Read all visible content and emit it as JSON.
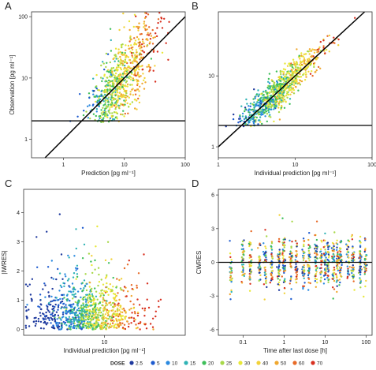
{
  "chart_data": [
    {
      "panel": "A",
      "type": "scatter",
      "xlabel": "Prediction [pg ml⁻¹]",
      "ylabel": "Observation [pg ml⁻¹]",
      "x_scale": "log",
      "y_scale": "log",
      "xlim": [
        0.3,
        100
      ],
      "ylim": [
        0.5,
        120
      ],
      "x_ticks": [
        1,
        10,
        100
      ],
      "x_tick_labels": [
        "1",
        "10",
        "100"
      ],
      "y_ticks": [
        1,
        10,
        100
      ],
      "y_tick_labels": [
        "1",
        "10",
        "100"
      ],
      "reference_lines": [
        {
          "type": "identity"
        },
        {
          "type": "horizontal",
          "y": 2
        }
      ],
      "point_cloud": {
        "cx": 8,
        "cy": 7,
        "sx": 0.3,
        "sy": 0.3,
        "n": 900,
        "corr": 0.85
      }
    },
    {
      "panel": "B",
      "type": "scatter",
      "xlabel": "Individual prediction [pg ml⁻¹]",
      "ylabel": "",
      "x_scale": "log",
      "y_scale": "log",
      "xlim": [
        1,
        100
      ],
      "ylim": [
        0.7,
        80
      ],
      "x_ticks": [
        1,
        10,
        100
      ],
      "x_tick_labels": [
        "1",
        "10",
        "100"
      ],
      "y_ticks": [
        1,
        10
      ],
      "y_tick_labels": [
        "1",
        "10"
      ],
      "reference_lines": [
        {
          "type": "identity"
        },
        {
          "type": "horizontal",
          "y": 2
        }
      ],
      "point_cloud": {
        "cx": 6,
        "cy": 6,
        "sx": 0.28,
        "sy": 0.28,
        "n": 900,
        "corr": 0.98
      }
    },
    {
      "panel": "C",
      "type": "scatter",
      "xlabel": "Individual prediction [pg ml⁻¹]",
      "ylabel": "|IWRES|",
      "x_scale": "log",
      "y_scale": "linear",
      "xlim": [
        1,
        100
      ],
      "ylim": [
        -0.2,
        4.8
      ],
      "x_ticks": [
        10
      ],
      "x_tick_labels": [
        "10"
      ],
      "y_ticks": [
        0,
        1,
        2,
        3,
        4
      ],
      "y_tick_labels": [
        "0",
        "1",
        "2",
        "3",
        "4"
      ],
      "point_cloud": {
        "cx": 6,
        "n": 1000
      }
    },
    {
      "panel": "D",
      "type": "scatter",
      "xlabel": "Time after last dose [h]",
      "ylabel": "CWRES",
      "x_scale": "log",
      "y_scale": "linear",
      "xlim": [
        0.025,
        140
      ],
      "ylim": [
        -6.5,
        6.5
      ],
      "x_ticks": [
        0.1,
        1,
        10,
        100
      ],
      "x_tick_labels": [
        "0.1",
        "1",
        "10",
        "100"
      ],
      "y_ticks": [
        -6,
        -3,
        0,
        3,
        6
      ],
      "y_tick_labels": [
        "-6",
        "-3",
        "0",
        "3",
        "6"
      ],
      "reference_lines": [
        {
          "type": "horizontal",
          "y": 0
        }
      ],
      "time_points": [
        0.05,
        0.1,
        0.15,
        0.25,
        0.35,
        0.5,
        0.75,
        1,
        1.5,
        2,
        3,
        4,
        6,
        8,
        10,
        12,
        16,
        20,
        24,
        36,
        48,
        72,
        96
      ]
    }
  ],
  "legend": {
    "title": "DOSE",
    "placement": "bottom",
    "items": [
      {
        "label": "2.5",
        "color": "#1f3a9e"
      },
      {
        "label": "5",
        "color": "#1e5bcf"
      },
      {
        "label": "10",
        "color": "#2b8ae0"
      },
      {
        "label": "15",
        "color": "#2fb3b5"
      },
      {
        "label": "20",
        "color": "#3fbf5a"
      },
      {
        "label": "25",
        "color": "#a8d84a"
      },
      {
        "label": "30",
        "color": "#e8e83a"
      },
      {
        "label": "40",
        "color": "#f2d23a"
      },
      {
        "label": "50",
        "color": "#f0a830"
      },
      {
        "label": "60",
        "color": "#e86b28"
      },
      {
        "label": "70",
        "color": "#d83020"
      }
    ]
  }
}
